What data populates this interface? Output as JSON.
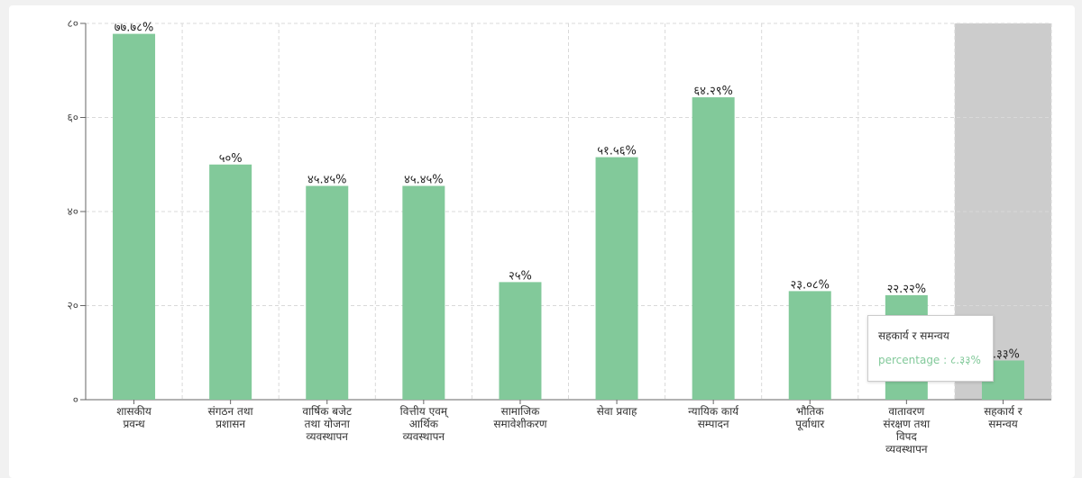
{
  "chart_data": {
    "type": "bar",
    "categories": [
      [
        "शासकीय",
        "प्रवन्ध"
      ],
      [
        "संगठन तथा",
        "प्रशासन"
      ],
      [
        "वार्षिक बजेट",
        "तथा योजना",
        "व्यवस्थापन"
      ],
      [
        "वित्तीय एवम्",
        "आर्थिक",
        "व्यवस्थापन"
      ],
      [
        "सामाजिक",
        "समावेशीकरण"
      ],
      [
        "सेवा प्रवाह"
      ],
      [
        "न्यायिक कार्य",
        "सम्पादन"
      ],
      [
        "भौतिक",
        "पूर्वाधार"
      ],
      [
        "वातावरण",
        "संरक्षण तथा",
        "विपद",
        "व्यवस्थापन"
      ],
      [
        "सहकार्य र",
        "समन्वय"
      ]
    ],
    "values": [
      77.78,
      50,
      45.45,
      45.45,
      25,
      51.56,
      64.29,
      23.08,
      22.22,
      8.33
    ],
    "data_labels": [
      "७७.७८%",
      "५०%",
      "४५.४५%",
      "४५.४५%",
      "२५%",
      "५१.५६%",
      "६४.२९%",
      "२३.०८%",
      "२२.२२%",
      "८.३३%"
    ],
    "ylim": [
      0,
      80
    ],
    "yticks": [
      0,
      20,
      40,
      60,
      80
    ],
    "ytick_labels": [
      "०",
      "२०",
      "४०",
      "६०",
      "८०"
    ],
    "grid": true,
    "highlighted_index": 9,
    "colors": {
      "bar": "#82c99a",
      "highlight": "#cccccc",
      "grid": "#d9d9d9"
    },
    "tooltip": {
      "title": "सहकार्य र समन्वय",
      "line": "percentage : ८.३३%"
    }
  }
}
